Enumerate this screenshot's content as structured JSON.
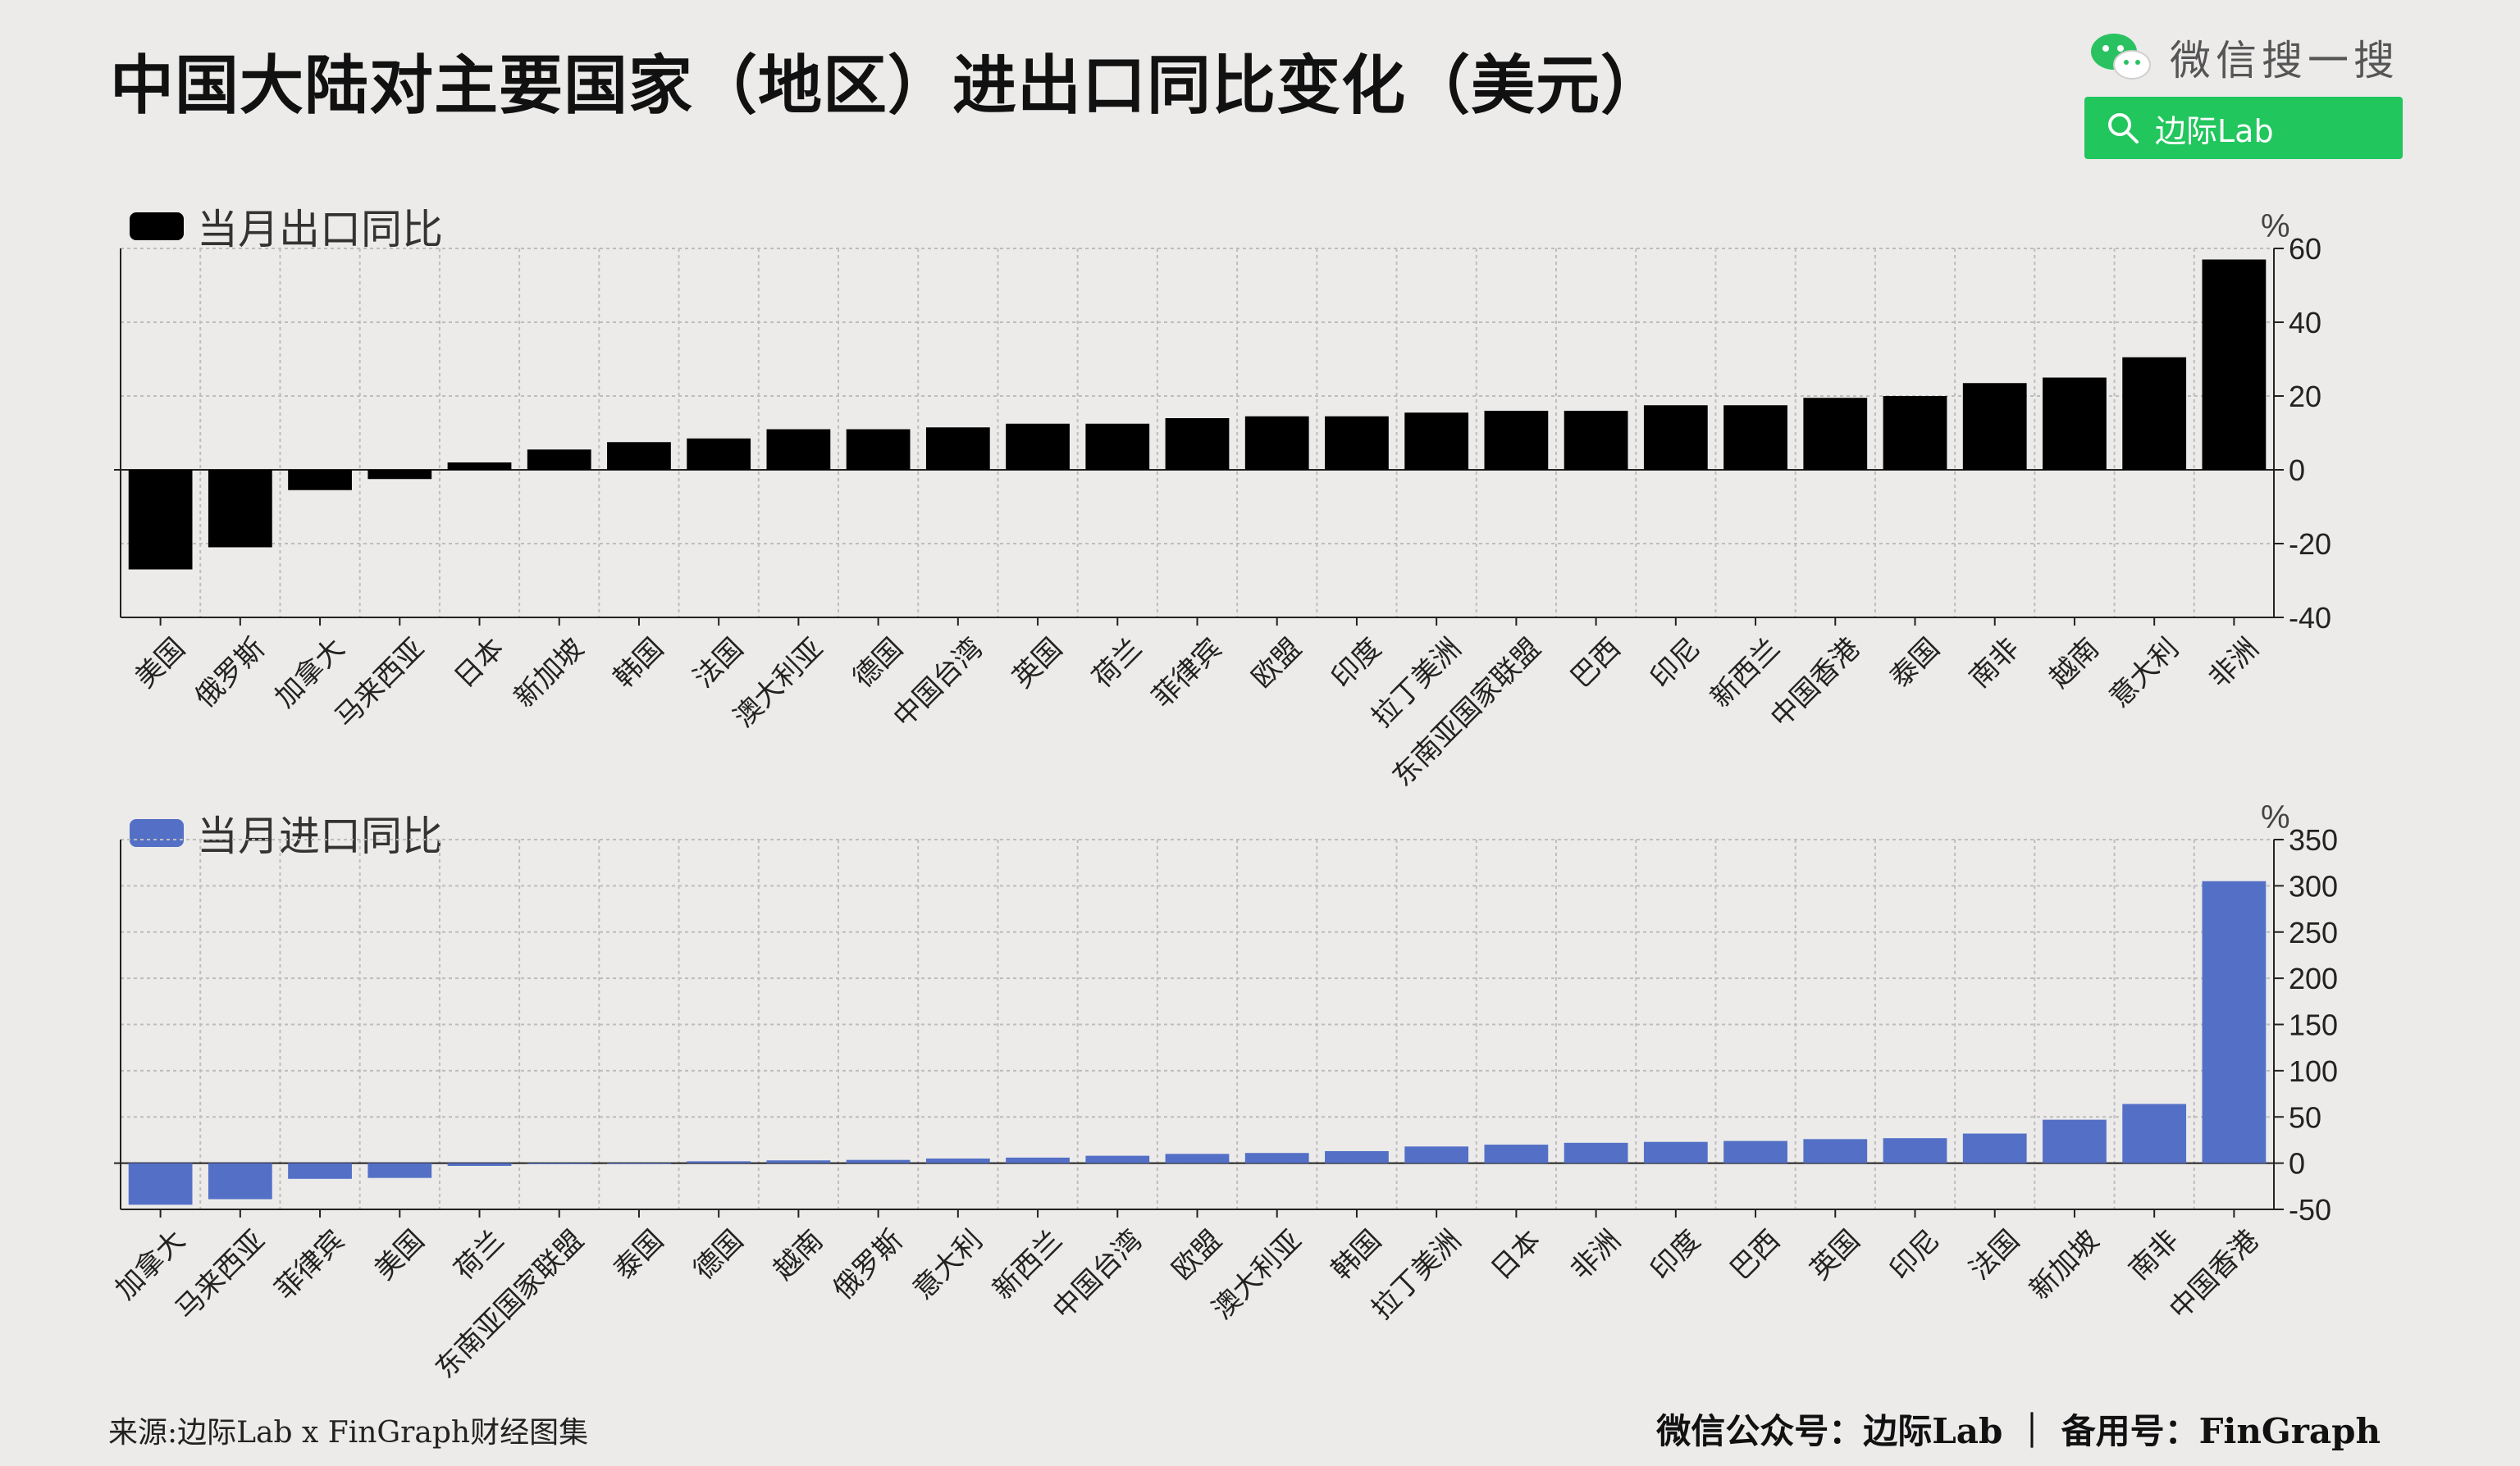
{
  "title": "中国大陆对主要国家（地区）进出口同比变化（美元）",
  "wechat": {
    "label": "微信搜一搜",
    "search_text": "边际Lab"
  },
  "footer": {
    "source": "来源:边际Lab x FinGraph财经图集",
    "credits": "微信公众号：边际Lab ｜ 备用号：FinGraph"
  },
  "colors": {
    "export": "#000000",
    "import": "#5470c6",
    "grid": "#bdbdbd",
    "background": "#ecebea",
    "search": "#21c65d"
  },
  "chart_data": [
    {
      "type": "bar",
      "legend": "当月出口同比",
      "unit": "%",
      "ylim": [
        -40,
        60
      ],
      "yticks": [
        60,
        40,
        20,
        0,
        -20,
        -40
      ],
      "grid": true,
      "categories": [
        "美国",
        "俄罗斯",
        "加拿大",
        "马来西亚",
        "日本",
        "新加坡",
        "韩国",
        "法国",
        "澳大利亚",
        "德国",
        "中国台湾",
        "英国",
        "荷兰",
        "菲律宾",
        "欧盟",
        "印度",
        "拉丁美洲",
        "东南亚国家联盟",
        "巴西",
        "印尼",
        "新西兰",
        "中国香港",
        "泰国",
        "南非",
        "越南",
        "意大利",
        "非洲"
      ],
      "values": [
        -27,
        -21,
        -5.5,
        -2.5,
        2,
        5.5,
        7.5,
        8.5,
        11,
        11,
        11.5,
        12.5,
        12.5,
        14,
        14.5,
        14.5,
        15.5,
        16,
        16,
        17.5,
        17.5,
        19.5,
        20,
        23.5,
        25,
        30.5,
        57
      ]
    },
    {
      "type": "bar",
      "legend": "当月进口同比",
      "unit": "%",
      "ylim": [
        -50,
        350
      ],
      "yticks": [
        350,
        300,
        250,
        200,
        150,
        100,
        50,
        0,
        -50
      ],
      "grid": true,
      "categories": [
        "加拿大",
        "马来西亚",
        "菲律宾",
        "美国",
        "荷兰",
        "东南亚国家联盟",
        "泰国",
        "德国",
        "越南",
        "俄罗斯",
        "意大利",
        "新西兰",
        "中国台湾",
        "欧盟",
        "澳大利亚",
        "韩国",
        "拉丁美洲",
        "日本",
        "非洲",
        "印度",
        "巴西",
        "英国",
        "印尼",
        "法国",
        "新加坡",
        "南非",
        "中国香港"
      ],
      "values": [
        -45,
        -39,
        -17,
        -16,
        -3,
        -1,
        0,
        2,
        3,
        3.5,
        5,
        6,
        8,
        10,
        11,
        13,
        18,
        20,
        22,
        23,
        24,
        26,
        27,
        32,
        47,
        64,
        305
      ]
    }
  ]
}
